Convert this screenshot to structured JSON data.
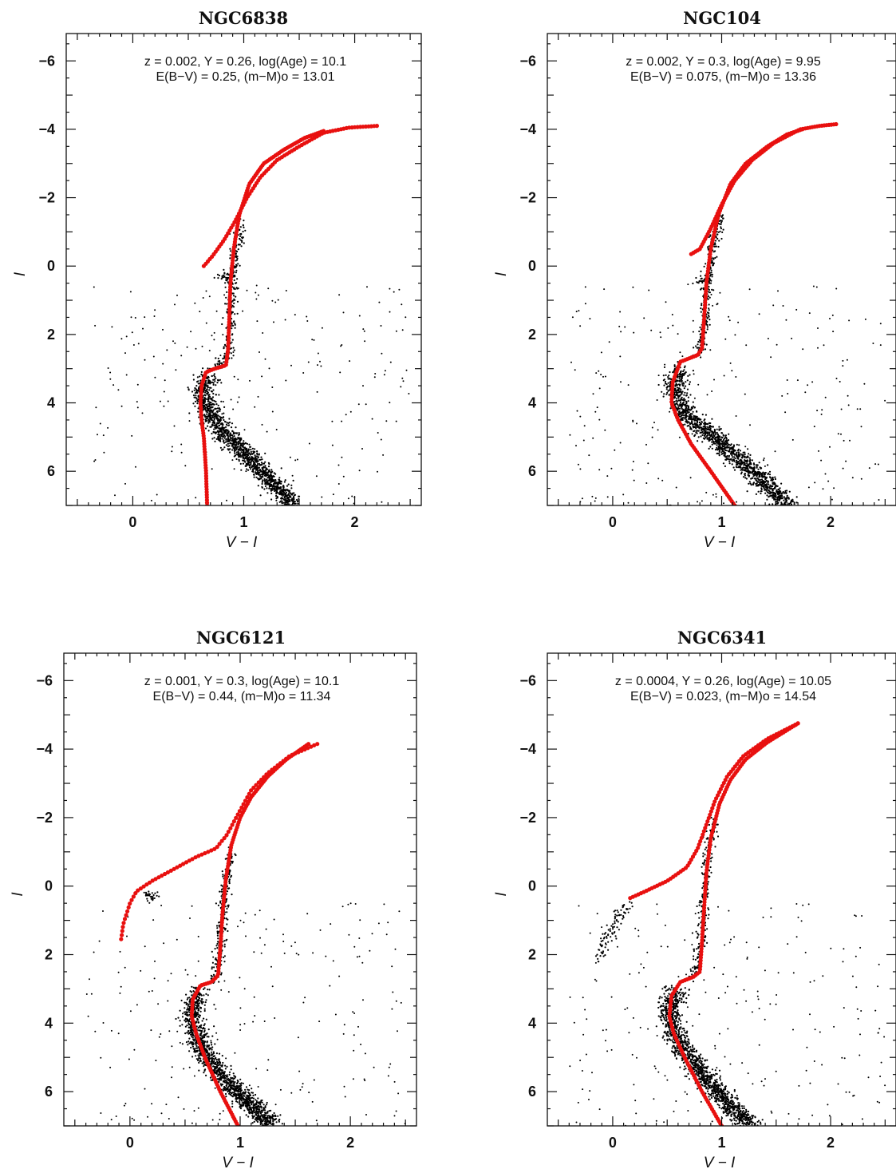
{
  "chart_data": [
    {
      "type": "scatter",
      "title": "NGC6838",
      "xlabel": "V − I",
      "ylabel": "I",
      "xlim": [
        -0.6,
        2.6
      ],
      "ylim": [
        7.0,
        -6.8
      ],
      "y_inverted": true,
      "xticks": [
        0,
        1,
        2
      ],
      "yticks": [
        -6,
        -4,
        -2,
        0,
        2,
        4,
        6
      ],
      "annotation": {
        "line1": "z = 0.002, Y = 0.26, log(Age) = 10.1",
        "line2": "E(B−V) = 0.25, (m−M)o = 13.01"
      },
      "isochrone": {
        "color": "#e8100f",
        "rgb": [
          [
            0.67,
            7.0
          ],
          [
            0.66,
            6.0
          ],
          [
            0.64,
            5.0
          ],
          [
            0.62,
            4.5
          ],
          [
            0.61,
            4.0
          ],
          [
            0.62,
            3.5
          ],
          [
            0.66,
            3.1
          ],
          [
            0.74,
            3.0
          ],
          [
            0.84,
            2.9
          ],
          [
            0.86,
            2.4
          ],
          [
            0.87,
            1.5
          ],
          [
            0.88,
            0.5
          ],
          [
            0.91,
            -0.5
          ],
          [
            0.96,
            -1.5
          ],
          [
            1.05,
            -2.4
          ],
          [
            1.18,
            -3.0
          ],
          [
            1.36,
            -3.4
          ],
          [
            1.55,
            -3.75
          ],
          [
            1.72,
            -3.95
          ]
        ],
        "hb_agb": [
          [
            0.64,
            0.0
          ],
          [
            0.72,
            -0.3
          ],
          [
            0.82,
            -0.75
          ],
          [
            0.92,
            -1.3
          ],
          [
            1.03,
            -2.0
          ],
          [
            1.15,
            -2.6
          ],
          [
            1.3,
            -3.1
          ],
          [
            1.5,
            -3.5
          ],
          [
            1.72,
            -3.9
          ],
          [
            1.95,
            -4.05
          ],
          [
            2.2,
            -4.1
          ]
        ],
        "note_rgb": [
          [
            1.1,
            7.0
          ],
          [
            0.85,
            5.5
          ],
          [
            0.68,
            4.5
          ]
        ]
      },
      "observed": {
        "main_sequence": [
          [
            1.45,
            7.0
          ],
          [
            1.25,
            6.3
          ],
          [
            1.05,
            5.6
          ],
          [
            0.85,
            5.0
          ],
          [
            0.7,
            4.3
          ],
          [
            0.62,
            3.7
          ],
          [
            0.68,
            3.2
          ]
        ],
        "red_giant_branch": [
          [
            0.76,
            3.0
          ],
          [
            0.86,
            2.6
          ],
          [
            0.87,
            1.6
          ],
          [
            0.88,
            0.8
          ],
          [
            0.92,
            -0.2
          ],
          [
            0.98,
            -1.2
          ]
        ],
        "red_clump": [
          [
            0.84,
            0.3
          ]
        ]
      }
    },
    {
      "type": "scatter",
      "title": "NGC104",
      "xlabel": "V − I",
      "ylabel": "I",
      "xlim": [
        -0.6,
        2.6
      ],
      "ylim": [
        7.0,
        -6.8
      ],
      "y_inverted": true,
      "xticks": [
        0,
        1,
        2
      ],
      "yticks": [
        -6,
        -4,
        -2,
        0,
        2,
        4,
        6
      ],
      "annotation": {
        "line1": "z = 0.002, Y = 0.3, log(Age) = 9.95",
        "line2": "E(B−V) = 0.075, (m−M)o = 13.36"
      },
      "isochrone": {
        "color": "#e8100f",
        "rgb": [
          [
            1.12,
            7.0
          ],
          [
            0.9,
            6.0
          ],
          [
            0.72,
            5.2
          ],
          [
            0.6,
            4.5
          ],
          [
            0.54,
            4.0
          ],
          [
            0.55,
            3.4
          ],
          [
            0.62,
            2.8
          ],
          [
            0.78,
            2.6
          ],
          [
            0.82,
            2.4
          ],
          [
            0.84,
            1.5
          ],
          [
            0.86,
            0.5
          ],
          [
            0.9,
            -0.5
          ],
          [
            0.97,
            -1.5
          ],
          [
            1.08,
            -2.4
          ],
          [
            1.22,
            -3.0
          ],
          [
            1.42,
            -3.5
          ],
          [
            1.6,
            -3.85
          ],
          [
            1.74,
            -4.0
          ]
        ],
        "hb_agb": [
          [
            0.72,
            -0.35
          ],
          [
            0.8,
            -0.5
          ],
          [
            0.9,
            -1.1
          ],
          [
            1.0,
            -1.8
          ],
          [
            1.12,
            -2.5
          ],
          [
            1.28,
            -3.1
          ],
          [
            1.48,
            -3.6
          ],
          [
            1.72,
            -4.0
          ],
          [
            1.9,
            -4.1
          ],
          [
            2.05,
            -4.15
          ]
        ],
        "note_rgb": []
      },
      "observed": {
        "main_sequence": [
          [
            1.6,
            7.0
          ],
          [
            1.35,
            6.2
          ],
          [
            1.1,
            5.5
          ],
          [
            0.85,
            4.8
          ],
          [
            0.65,
            4.2
          ],
          [
            0.55,
            3.6
          ],
          [
            0.62,
            3.0
          ]
        ],
        "red_giant_branch": [
          [
            0.78,
            2.6
          ],
          [
            0.84,
            1.8
          ],
          [
            0.86,
            1.0
          ],
          [
            0.88,
            0.2
          ],
          [
            0.92,
            -0.6
          ],
          [
            1.0,
            -1.5
          ]
        ],
        "red_clump": [
          [
            0.82,
            0.4
          ]
        ]
      }
    },
    {
      "type": "scatter",
      "title": "NGC6121",
      "xlabel": "V − I",
      "ylabel": "I",
      "xlim": [
        -0.6,
        2.6
      ],
      "ylim": [
        7.0,
        -6.8
      ],
      "y_inverted": true,
      "xticks": [
        0,
        1,
        2
      ],
      "yticks": [
        -6,
        -4,
        -2,
        0,
        2,
        4,
        6
      ],
      "annotation": {
        "line1": "z = 0.001, Y = 0.3, log(Age) = 10.1",
        "line2": "E(B−V) = 0.44, (m−M)o = 11.34"
      },
      "isochrone": {
        "color": "#e8100f",
        "rgb": [
          [
            0.98,
            7.0
          ],
          [
            0.82,
            6.0
          ],
          [
            0.68,
            5.0
          ],
          [
            0.6,
            4.3
          ],
          [
            0.56,
            3.8
          ],
          [
            0.57,
            3.3
          ],
          [
            0.64,
            2.9
          ],
          [
            0.74,
            2.8
          ],
          [
            0.8,
            2.6
          ],
          [
            0.82,
            1.8
          ],
          [
            0.84,
            0.8
          ],
          [
            0.87,
            -0.2
          ],
          [
            0.92,
            -1.2
          ],
          [
            1.0,
            -2.0
          ],
          [
            1.1,
            -2.6
          ],
          [
            1.25,
            -3.2
          ],
          [
            1.42,
            -3.7
          ],
          [
            1.62,
            -4.15
          ]
        ],
        "hb_agb": [
          [
            -0.08,
            1.55
          ],
          [
            -0.06,
            1.1
          ],
          [
            0.0,
            0.5
          ],
          [
            0.06,
            0.15
          ],
          [
            0.2,
            -0.15
          ],
          [
            0.4,
            -0.5
          ],
          [
            0.6,
            -0.85
          ],
          [
            0.78,
            -1.1
          ],
          [
            0.88,
            -1.5
          ],
          [
            0.98,
            -2.1
          ],
          [
            1.1,
            -2.8
          ],
          [
            1.25,
            -3.3
          ],
          [
            1.45,
            -3.8
          ],
          [
            1.7,
            -4.15
          ]
        ],
        "note_rgb": []
      },
      "observed": {
        "main_sequence": [
          [
            1.3,
            7.0
          ],
          [
            1.1,
            6.4
          ],
          [
            0.9,
            5.8
          ],
          [
            0.7,
            5.0
          ],
          [
            0.6,
            4.3
          ],
          [
            0.56,
            3.7
          ],
          [
            0.62,
            3.1
          ]
        ],
        "red_giant_branch": [
          [
            0.76,
            2.8
          ],
          [
            0.82,
            2.0
          ],
          [
            0.84,
            1.0
          ],
          [
            0.87,
            0.0
          ],
          [
            0.92,
            -1.0
          ]
        ],
        "red_clump": [
          [
            0.18,
            0.3
          ]
        ]
      }
    },
    {
      "type": "scatter",
      "title": "NGC6341",
      "xlabel": "V − I",
      "ylabel": "I",
      "xlim": [
        -0.6,
        2.6
      ],
      "ylim": [
        7.0,
        -6.8
      ],
      "y_inverted": true,
      "xticks": [
        0,
        1,
        2
      ],
      "yticks": [
        -6,
        -4,
        -2,
        0,
        2,
        4,
        6
      ],
      "annotation": {
        "line1": "z = 0.0004, Y = 0.26, log(Age) = 10.05",
        "line2": "E(B−V) = 0.023, (m−M)o = 14.54"
      },
      "isochrone": {
        "color": "#e8100f",
        "rgb": [
          [
            1.0,
            7.0
          ],
          [
            0.82,
            6.0
          ],
          [
            0.66,
            5.0
          ],
          [
            0.56,
            4.3
          ],
          [
            0.52,
            3.8
          ],
          [
            0.54,
            3.2
          ],
          [
            0.62,
            2.8
          ],
          [
            0.74,
            2.65
          ],
          [
            0.8,
            2.5
          ],
          [
            0.82,
            1.6
          ],
          [
            0.84,
            0.6
          ],
          [
            0.86,
            -0.4
          ],
          [
            0.9,
            -1.4
          ],
          [
            0.98,
            -2.4
          ],
          [
            1.08,
            -3.1
          ],
          [
            1.22,
            -3.7
          ],
          [
            1.42,
            -4.2
          ],
          [
            1.7,
            -4.75
          ]
        ],
        "hb_agb": [
          [
            0.16,
            0.35
          ],
          [
            0.3,
            0.15
          ],
          [
            0.5,
            -0.15
          ],
          [
            0.68,
            -0.55
          ],
          [
            0.78,
            -1.1
          ],
          [
            0.86,
            -1.8
          ],
          [
            0.94,
            -2.5
          ],
          [
            1.05,
            -3.2
          ],
          [
            1.2,
            -3.8
          ],
          [
            1.42,
            -4.3
          ],
          [
            1.7,
            -4.75
          ]
        ],
        "note_rgb": []
      },
      "observed": {
        "main_sequence": [
          [
            1.25,
            7.0
          ],
          [
            1.05,
            6.3
          ],
          [
            0.85,
            5.6
          ],
          [
            0.65,
            4.8
          ],
          [
            0.55,
            4.1
          ],
          [
            0.52,
            3.5
          ],
          [
            0.58,
            3.0
          ]
        ],
        "red_giant_branch": [
          [
            0.72,
            2.7
          ],
          [
            0.8,
            2.0
          ],
          [
            0.83,
            1.0
          ],
          [
            0.85,
            0.0
          ],
          [
            0.88,
            -1.0
          ],
          [
            0.94,
            -2.0
          ]
        ],
        "blue_hb": [
          [
            -0.12,
            2.1
          ],
          [
            -0.05,
            1.5
          ],
          [
            0.05,
            0.9
          ],
          [
            0.15,
            0.5
          ]
        ]
      }
    }
  ]
}
